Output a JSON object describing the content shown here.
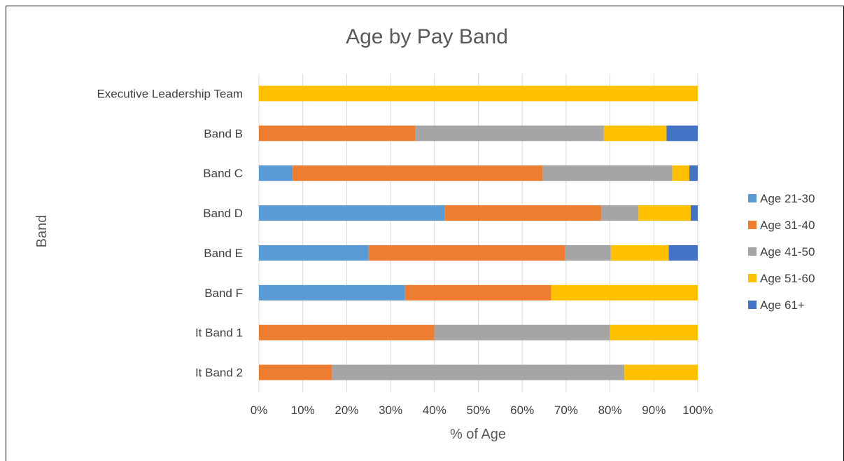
{
  "chart_data": {
    "type": "bar",
    "orientation": "horizontal",
    "stacked": "percent",
    "title": "Age by Pay Band",
    "xlabel": "% of Age",
    "ylabel": "Band",
    "xlim": [
      0,
      100
    ],
    "xticks": [
      "0%",
      "10%",
      "20%",
      "30%",
      "40%",
      "50%",
      "60%",
      "70%",
      "80%",
      "90%",
      "100%"
    ],
    "grid": "vertical",
    "legend_position": "right",
    "categories": [
      "Executive Leadership Team",
      "Band B",
      "Band C",
      "Band D",
      "Band E",
      "Band F",
      "It Band 1",
      "It Band 2"
    ],
    "series": [
      {
        "name": "Age 21-30",
        "color": "#5B9BD5",
        "values": [
          0,
          0,
          7.7,
          42.4,
          25.0,
          33.3,
          0,
          0
        ]
      },
      {
        "name": "Age 31-40",
        "color": "#ED7D31",
        "values": [
          0,
          35.7,
          57.0,
          35.6,
          44.7,
          33.3,
          40.0,
          16.7
        ]
      },
      {
        "name": "Age 41-50",
        "color": "#A5A5A5",
        "values": [
          0,
          42.9,
          29.5,
          8.5,
          10.5,
          0,
          40.0,
          66.6
        ]
      },
      {
        "name": "Age 51-60",
        "color": "#FFC000",
        "values": [
          100,
          14.3,
          3.9,
          11.9,
          13.2,
          33.4,
          20.0,
          16.7
        ]
      },
      {
        "name": "Age 61+",
        "color": "#4472C4",
        "values": [
          0,
          7.1,
          1.9,
          1.6,
          6.6,
          0,
          0,
          0
        ]
      }
    ]
  }
}
